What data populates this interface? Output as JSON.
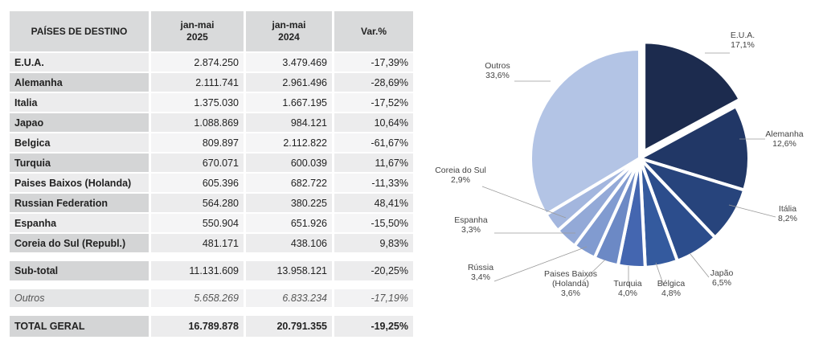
{
  "table": {
    "headers": [
      "PAÍSES DE DESTINO",
      "jan-mai\n2025",
      "jan-mai\n2024",
      "Var.%"
    ],
    "rows": [
      {
        "country": "E.U.A.",
        "v2025": "2.874.250",
        "v2024": "3.479.469",
        "var": "-17,39%"
      },
      {
        "country": "Alemanha",
        "v2025": "2.111.741",
        "v2024": "2.961.496",
        "var": "-28,69%"
      },
      {
        "country": "Italia",
        "v2025": "1.375.030",
        "v2024": "1.667.195",
        "var": "-17,52%"
      },
      {
        "country": "Japao",
        "v2025": "1.088.869",
        "v2024": "984.121",
        "var": "10,64%"
      },
      {
        "country": "Belgica",
        "v2025": "809.897",
        "v2024": "2.112.822",
        "var": "-61,67%"
      },
      {
        "country": "Turquia",
        "v2025": "670.071",
        "v2024": "600.039",
        "var": "11,67%"
      },
      {
        "country": "Paises Baixos (Holanda)",
        "v2025": "605.396",
        "v2024": "682.722",
        "var": "-11,33%"
      },
      {
        "country": "Russian Federation",
        "v2025": "564.280",
        "v2024": "380.225",
        "var": "48,41%"
      },
      {
        "country": "Espanha",
        "v2025": "550.904",
        "v2024": "651.926",
        "var": "-15,50%"
      },
      {
        "country": "Coreia do Sul (Republ.)",
        "v2025": "481.171",
        "v2024": "438.106",
        "var": "9,83%"
      }
    ],
    "subtotal": {
      "country": "Sub-total",
      "v2025": "11.131.609",
      "v2024": "13.958.121",
      "var": "-20,25%"
    },
    "outros": {
      "country": "Outros",
      "v2025": "5.658.269",
      "v2024": "6.833.234",
      "var": "-17,19%"
    },
    "total": {
      "country": "TOTAL GERAL",
      "v2025": "16.789.878",
      "v2024": "20.791.355",
      "var": "-19,25%"
    }
  },
  "chart_data": {
    "type": "pie",
    "slices": [
      {
        "label": "E.U.A.",
        "pct_text": "17,1%",
        "value": 17.1,
        "color": "#1c2b4e",
        "exploded": true
      },
      {
        "label": "Alemanha",
        "pct_text": "12,6%",
        "value": 12.6,
        "color": "#213766"
      },
      {
        "label": "Itália",
        "pct_text": "8,2%",
        "value": 8.2,
        "color": "#27447c"
      },
      {
        "label": "Japão",
        "pct_text": "6,5%",
        "value": 6.5,
        "color": "#2c4d8c"
      },
      {
        "label": "Bélgica",
        "pct_text": "4,8%",
        "value": 4.8,
        "color": "#345a9e"
      },
      {
        "label": "Turquia",
        "pct_text": "4,0%",
        "value": 4.0,
        "color": "#4466b0"
      },
      {
        "label": "Paises Baixos\n(Holanda)",
        "pct_text": "3,6%",
        "value": 3.6,
        "color": "#6c89c5"
      },
      {
        "label": "Rússia",
        "pct_text": "3,4%",
        "value": 3.4,
        "color": "#819bd0"
      },
      {
        "label": "Espanha",
        "pct_text": "3,3%",
        "value": 3.3,
        "color": "#93a9d7"
      },
      {
        "label": "Coreia do Sul",
        "pct_text": "2,9%",
        "value": 2.9,
        "color": "#a3b6de"
      },
      {
        "label": "Outros",
        "pct_text": "33,6%",
        "value": 33.6,
        "color": "#b3c4e5"
      }
    ]
  }
}
